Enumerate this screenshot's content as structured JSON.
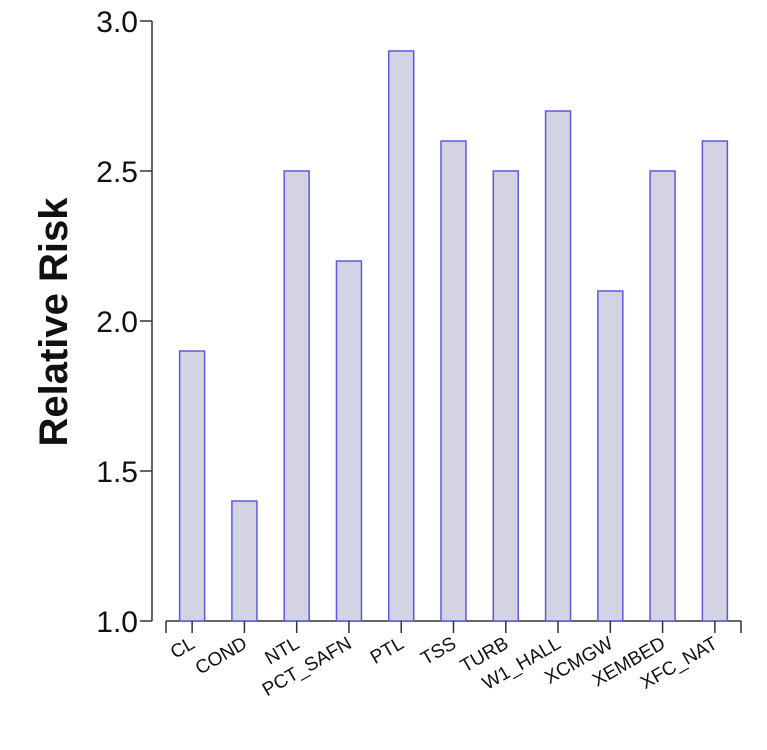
{
  "chart_data": {
    "type": "bar",
    "title": "",
    "xlabel": "",
    "ylabel": "Relative Risk",
    "categories": [
      "CL",
      "COND",
      "NTL",
      "PCT_SAFN",
      "PTL",
      "TSS",
      "TURB",
      "W1_HALL",
      "XCMGW",
      "XEMBED",
      "XFC_NAT"
    ],
    "values": [
      1.9,
      1.4,
      2.5,
      2.2,
      2.9,
      2.6,
      2.5,
      2.7,
      2.1,
      2.5,
      2.6
    ],
    "ylim": [
      1.0,
      3.0
    ],
    "yticks": [
      "1.0",
      "1.5",
      "2.0",
      "2.5",
      "3.0"
    ],
    "grid": false,
    "legend": "none",
    "colors": {
      "bar_fill": "#d4d3e3",
      "bar_stroke": "#5a5ae0",
      "axis": "#333333"
    }
  }
}
